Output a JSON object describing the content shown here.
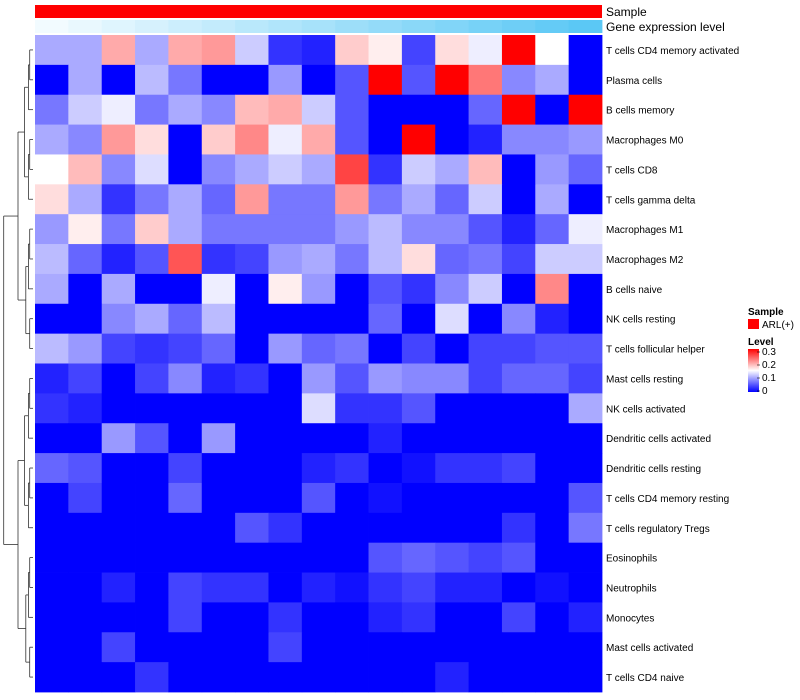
{
  "chart_data": {
    "type": "heatmap",
    "annotation_rows": [
      {
        "name": "Sample",
        "label": "Sample"
      },
      {
        "name": "Gene expression level",
        "label": "Gene expression level",
        "gradient": [
          "#f2fbff",
          "#5bc8f5"
        ]
      }
    ],
    "rows": [
      "T cells CD4 memory activated",
      "Plasma cells",
      "B cells memory",
      "Macrophages M0",
      "T cells CD8",
      "T cells gamma delta",
      "Macrophages M1",
      "Macrophages M2",
      "B cells naive",
      "NK cells resting",
      "T cells follicular helper",
      "Mast cells resting",
      "NK cells activated",
      "Dendritic cells activated",
      "Dendritic cells resting",
      "T cells CD4 memory resting",
      "T cells regulatory  Tregs",
      "Eosinophils",
      "Neutrophils",
      "Monocytes",
      "Mast cells activated",
      "T cells CD4 naive"
    ],
    "n_columns": 17,
    "values": [
      [
        0.1,
        0.1,
        0.2,
        0.1,
        0.2,
        0.21,
        0.12,
        0.03,
        0.02,
        0.18,
        0.16,
        0.04,
        0.17,
        0.14,
        0.3,
        0.15,
        0.0
      ],
      [
        0.0,
        0.1,
        0.0,
        0.11,
        0.07,
        0.0,
        0.0,
        0.09,
        0.0,
        0.05,
        0.3,
        0.05,
        0.3,
        0.23,
        0.08,
        0.1,
        0.0
      ],
      [
        0.07,
        0.12,
        0.14,
        0.07,
        0.1,
        0.08,
        0.19,
        0.2,
        0.12,
        0.05,
        0.0,
        0.0,
        0.0,
        0.06,
        0.3,
        0.0,
        0.3
      ],
      [
        0.1,
        0.08,
        0.21,
        0.17,
        0.0,
        0.18,
        0.22,
        0.14,
        0.2,
        0.05,
        0.0,
        0.3,
        0.0,
        0.02,
        0.08,
        0.08,
        0.09
      ],
      [
        0.15,
        0.19,
        0.08,
        0.13,
        0.0,
        0.08,
        0.1,
        0.12,
        0.1,
        0.26,
        0.03,
        0.12,
        0.1,
        0.19,
        0.0,
        0.09,
        0.06
      ],
      [
        0.17,
        0.1,
        0.03,
        0.07,
        0.1,
        0.06,
        0.21,
        0.07,
        0.07,
        0.21,
        0.07,
        0.1,
        0.06,
        0.12,
        0.0,
        0.1,
        0.0
      ],
      [
        0.09,
        0.16,
        0.07,
        0.18,
        0.1,
        0.07,
        0.07,
        0.07,
        0.07,
        0.09,
        0.11,
        0.08,
        0.08,
        0.05,
        0.02,
        0.06,
        0.14
      ],
      [
        0.11,
        0.06,
        0.02,
        0.05,
        0.25,
        0.03,
        0.04,
        0.09,
        0.1,
        0.07,
        0.11,
        0.17,
        0.06,
        0.07,
        0.04,
        0.12,
        0.12
      ],
      [
        0.1,
        0.0,
        0.1,
        0.0,
        0.0,
        0.14,
        0.0,
        0.16,
        0.09,
        0.0,
        0.05,
        0.03,
        0.08,
        0.12,
        0.0,
        0.22,
        0.0
      ],
      [
        0.0,
        0.0,
        0.08,
        0.1,
        0.06,
        0.11,
        0.0,
        0.0,
        0.0,
        0.0,
        0.06,
        0.0,
        0.13,
        0.0,
        0.08,
        0.02,
        0.0
      ],
      [
        0.11,
        0.09,
        0.04,
        0.03,
        0.04,
        0.06,
        0.0,
        0.09,
        0.06,
        0.07,
        0.0,
        0.04,
        0.0,
        0.04,
        0.04,
        0.05,
        0.05
      ],
      [
        0.02,
        0.04,
        0.0,
        0.04,
        0.08,
        0.02,
        0.03,
        0.0,
        0.09,
        0.05,
        0.09,
        0.08,
        0.08,
        0.04,
        0.06,
        0.06,
        0.04
      ],
      [
        0.03,
        0.02,
        0.0,
        0.0,
        0.0,
        0.0,
        0.0,
        0.0,
        0.13,
        0.03,
        0.03,
        0.05,
        0.0,
        0.0,
        0.0,
        0.0,
        0.1
      ],
      [
        0.0,
        0.0,
        0.09,
        0.05,
        0.0,
        0.09,
        0.0,
        0.0,
        0.0,
        0.0,
        0.02,
        0.0,
        0.0,
        0.0,
        0.0,
        0.0,
        0.0
      ],
      [
        0.06,
        0.05,
        0.0,
        0.0,
        0.04,
        0.0,
        0.0,
        0.0,
        0.02,
        0.03,
        0.0,
        0.01,
        0.03,
        0.03,
        0.04,
        0.0,
        0.0
      ],
      [
        0.0,
        0.04,
        0.0,
        0.0,
        0.06,
        0.0,
        0.0,
        0.0,
        0.05,
        0.0,
        0.01,
        0.0,
        0.0,
        0.0,
        0.0,
        0.0,
        0.05
      ],
      [
        0.0,
        0.0,
        0.0,
        0.0,
        0.0,
        0.0,
        0.05,
        0.03,
        0.0,
        0.0,
        0.0,
        0.0,
        0.0,
        0.0,
        0.03,
        0.0,
        0.07
      ],
      [
        0.0,
        0.0,
        0.0,
        0.0,
        0.0,
        0.0,
        0.0,
        0.0,
        0.0,
        0.0,
        0.05,
        0.06,
        0.05,
        0.04,
        0.05,
        0.0,
        0.0
      ],
      [
        0.0,
        0.0,
        0.02,
        0.0,
        0.04,
        0.03,
        0.03,
        0.0,
        0.02,
        0.01,
        0.03,
        0.04,
        0.02,
        0.02,
        0.0,
        0.01,
        0.0
      ],
      [
        0.0,
        0.0,
        0.0,
        0.0,
        0.04,
        0.0,
        0.0,
        0.03,
        0.0,
        0.0,
        0.02,
        0.03,
        0.0,
        0.0,
        0.04,
        0.0,
        0.02
      ],
      [
        0.0,
        0.0,
        0.04,
        0.0,
        0.0,
        0.0,
        0.0,
        0.04,
        0.0,
        0.0,
        0.0,
        0.0,
        0.0,
        0.0,
        0.0,
        0.0,
        0.0
      ],
      [
        0.0,
        0.0,
        0.0,
        0.03,
        0.0,
        0.0,
        0.0,
        0.0,
        0.0,
        0.0,
        0.0,
        0.0,
        0.02,
        0.0,
        0.0,
        0.0,
        0.0
      ]
    ],
    "color_scale": {
      "min": 0,
      "mid": 0.15,
      "max": 0.3,
      "low": "#0000ff",
      "mid_color": "#ffffff",
      "high": "#ff0000"
    },
    "legend": {
      "sample_title": "Sample",
      "sample_entry": "ARL(+)",
      "sample_color": "#ff0000",
      "level_title": "Level",
      "level_ticks": [
        "0.3",
        "0.2",
        "0.1",
        "0"
      ]
    },
    "dendrogram": "rows"
  }
}
